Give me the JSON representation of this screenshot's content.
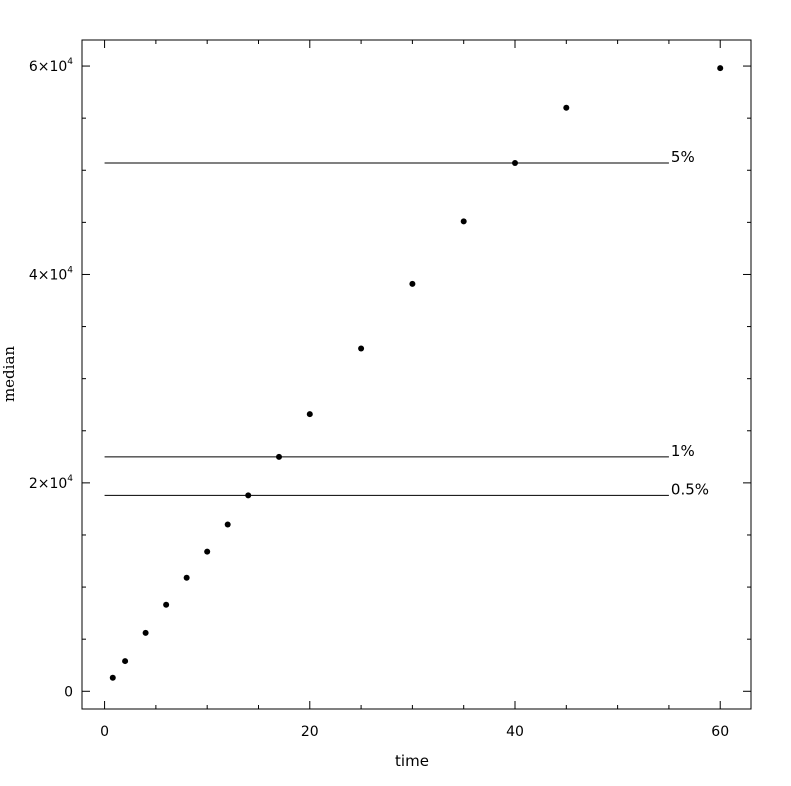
{
  "chart_data": {
    "type": "scatter",
    "title": "",
    "xlabel": "time",
    "ylabel": "median",
    "xlim": [
      -2.2,
      63
    ],
    "ylim": [
      -1700,
      62500
    ],
    "x_ticks_major": [
      0,
      20,
      40,
      60
    ],
    "x_ticks_minor": [
      5,
      10,
      15,
      25,
      30,
      35,
      45,
      50,
      55
    ],
    "x_tick_labels": [
      "0",
      "20",
      "40",
      "60"
    ],
    "y_ticks_major": [
      0,
      20000,
      40000,
      60000
    ],
    "y_ticks_minor": [
      5000,
      10000,
      15000,
      25000,
      30000,
      35000,
      45000,
      50000,
      55000
    ],
    "y_tick_labels": [
      {
        "base": "0",
        "exp": ""
      },
      {
        "base": "2×10",
        "exp": "4"
      },
      {
        "base": "4×10",
        "exp": "4"
      },
      {
        "base": "6×10",
        "exp": "4"
      }
    ],
    "grid": false,
    "series": [
      {
        "x": [
          0.8,
          2,
          4,
          6,
          8,
          10,
          12,
          14,
          17,
          20,
          25,
          30,
          35,
          40,
          45,
          60
        ],
        "y": [
          1300,
          2900,
          5600,
          8300,
          10900,
          13400,
          16000,
          18800,
          22500,
          26600,
          32900,
          39100,
          45100,
          50700,
          56000,
          59800
        ]
      }
    ],
    "reference_lines": [
      {
        "label": "5%",
        "y": 50700,
        "x_start": 0,
        "x_end": 55
      },
      {
        "label": "1%",
        "y": 22500,
        "x_start": 0,
        "x_end": 55
      },
      {
        "label": "0.5%",
        "y": 18800,
        "x_start": 0,
        "x_end": 55
      }
    ],
    "colors": {
      "points": "#000000",
      "lines": "#000000",
      "frame": "#000000"
    }
  }
}
